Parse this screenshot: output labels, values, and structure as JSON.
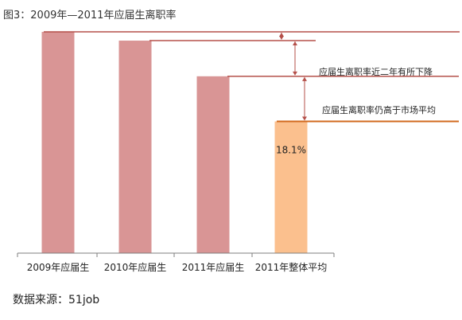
{
  "figure": {
    "title": "图3：2009年—2011年应届生离职率",
    "source": "数据来源：51job"
  },
  "colors": {
    "bar_graduate": "#d99595",
    "bar_overall": "#fbc08e",
    "reference_line": "#b5504a",
    "overall_line": "#d2691e",
    "axis": "#7f7f7f"
  },
  "chart_data": {
    "type": "bar",
    "categories": [
      "2009年应届生",
      "2010年应届生",
      "2011年应届生",
      "2011年整体平均"
    ],
    "values": [
      30.4,
      29.2,
      24.3,
      18.1
    ],
    "unit": "%",
    "ylim": [
      0,
      31.5
    ],
    "grid": false,
    "legend": "none",
    "data_labels": [
      {
        "category": "2011年整体平均",
        "text": "18.1%"
      }
    ],
    "annotations": [
      {
        "text": "应届生离职率近二年有所下降"
      },
      {
        "text": "应届生离职率仍高于市场平均"
      }
    ]
  }
}
